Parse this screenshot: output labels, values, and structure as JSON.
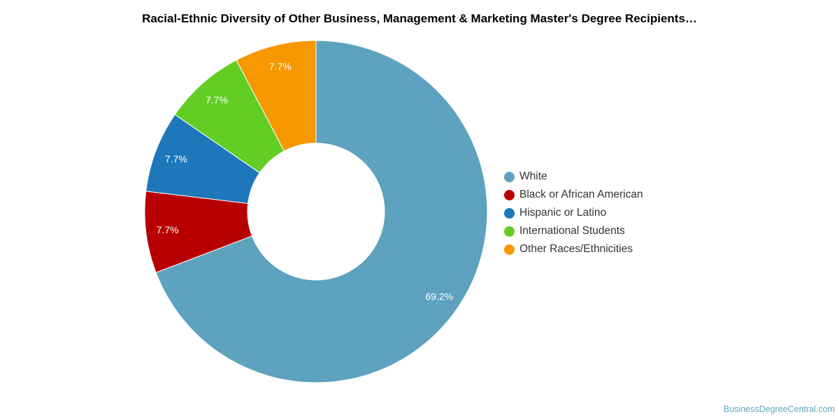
{
  "chart_data": {
    "type": "pie",
    "variant": "donut",
    "title": "Racial-Ethnic Diversity of Other Business, Management & Marketing Master's Degree Recipients…",
    "legend_position": "right",
    "slices": [
      {
        "label": "White",
        "value": 69.2,
        "value_label": "69.2%",
        "color": "#5da2bf"
      },
      {
        "label": "Black or African American",
        "value": 7.7,
        "value_label": "7.7%",
        "color": "#b90000"
      },
      {
        "label": "Hispanic or Latino",
        "value": 7.7,
        "value_label": "7.7%",
        "color": "#1f77bb"
      },
      {
        "label": "International Students",
        "value": 7.7,
        "value_label": "7.7%",
        "color": "#62cd23"
      },
      {
        "label": "Other Races/Ethnicities",
        "value": 7.7,
        "value_label": "7.7%",
        "color": "#f79800"
      }
    ]
  },
  "credit": "BusinessDegreeCentral.com"
}
